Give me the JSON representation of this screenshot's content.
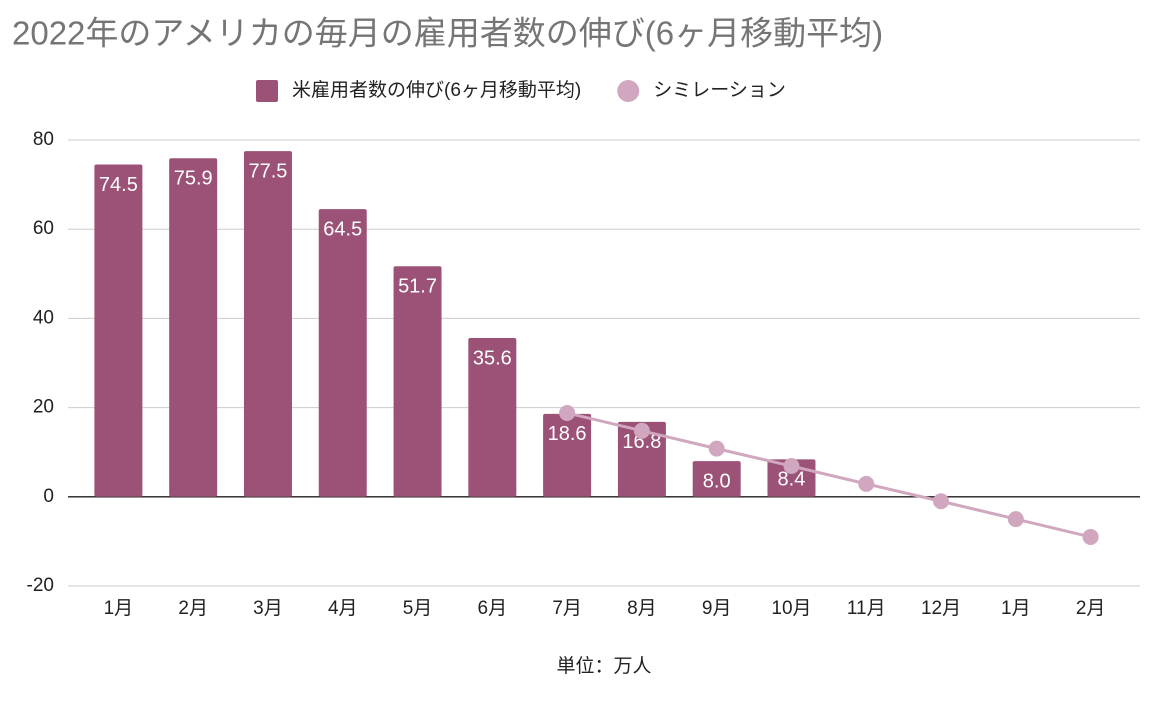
{
  "chart_data": {
    "type": "bar",
    "title": "2022年のアメリカの毎月の雇用者数の伸び(6ヶ月移動平均)",
    "x_label": "単位：万人",
    "categories": [
      "1月",
      "2月",
      "3月",
      "4月",
      "5月",
      "6月",
      "7月",
      "8月",
      "9月",
      "10月",
      "11月",
      "12月",
      "1月",
      "2月"
    ],
    "series": [
      {
        "name": "米雇用者数の伸び(6ヶ月移動平均)",
        "color": "#9b5276",
        "type": "bar",
        "values": [
          74.5,
          75.9,
          77.5,
          64.5,
          51.7,
          35.6,
          18.6,
          16.8,
          8.0,
          8.4,
          null,
          null,
          null,
          null
        ],
        "value_labels": [
          "74.5",
          "75.9",
          "77.5",
          "64.5",
          "51.7",
          "35.6",
          "18.6",
          "16.8",
          "8.0",
          "8.4",
          null,
          null,
          null,
          null
        ]
      },
      {
        "name": "シミレーション",
        "color": "#d0a7bf",
        "type": "line",
        "values": [
          null,
          null,
          null,
          null,
          null,
          null,
          18.8,
          14.8,
          10.8,
          6.9,
          2.9,
          -1,
          -5,
          -9
        ]
      }
    ],
    "ylim": [
      -20,
      80
    ],
    "yticks": [
      -20,
      0,
      20,
      40,
      60,
      80
    ],
    "grid": true,
    "legend": "top"
  }
}
